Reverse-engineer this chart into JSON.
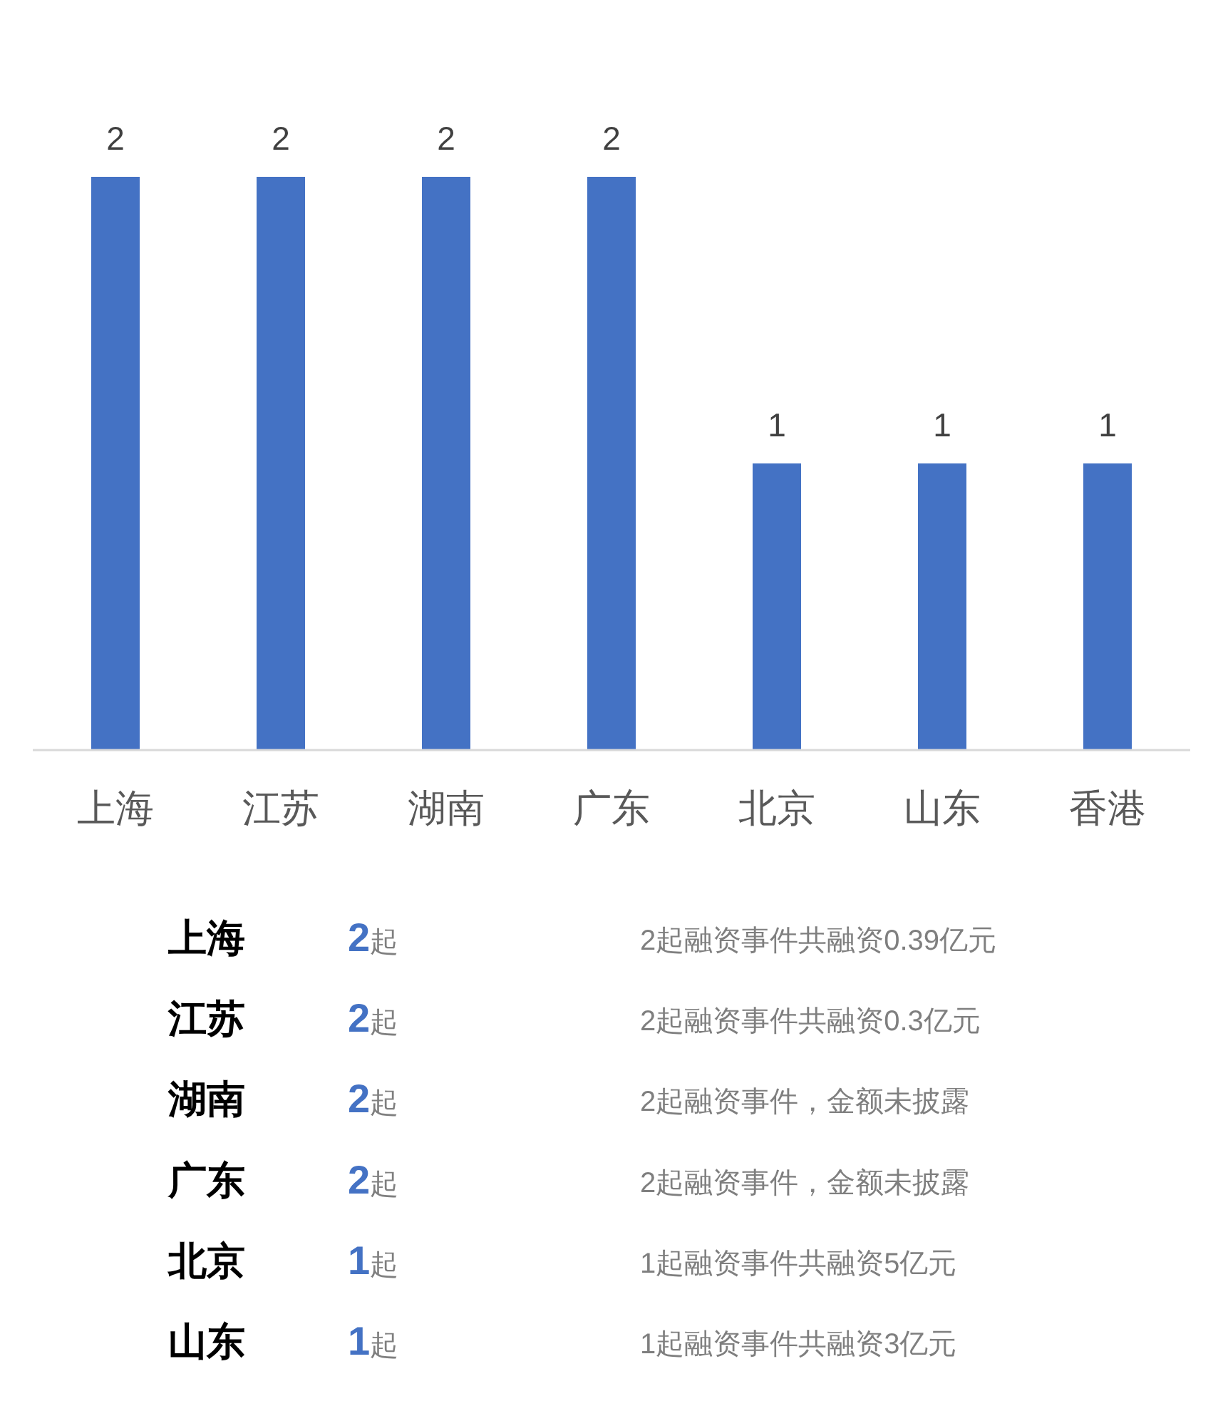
{
  "chart_data": [
    {
      "type": "bar",
      "categories": [
        "上海",
        "江苏",
        "湖南",
        "广东",
        "北京",
        "山东",
        "香港"
      ],
      "values": [
        2,
        2,
        2,
        2,
        1,
        1,
        1
      ],
      "color": "#4472c4",
      "data_labels": true
    },
    {
      "type": "other",
      "color": "#4472c4",
      "categories": [
        "上海",
        "江苏",
        "湖南",
        "广东",
        "北京",
        "山东"
      ],
      "value_labels": [
        "2起",
        "2起",
        "2起",
        "2起",
        "1起",
        "1起"
      ],
      "annotations": [
        "2起融资事件共融资0.39亿元",
        "2起融资事件共融资0.3亿元",
        "2起融资事件，金额未披露",
        "2起融资事件，金额未披露",
        "1起融资事件共融资5亿元",
        "1起融资事件共融资3亿元"
      ]
    }
  ]
}
